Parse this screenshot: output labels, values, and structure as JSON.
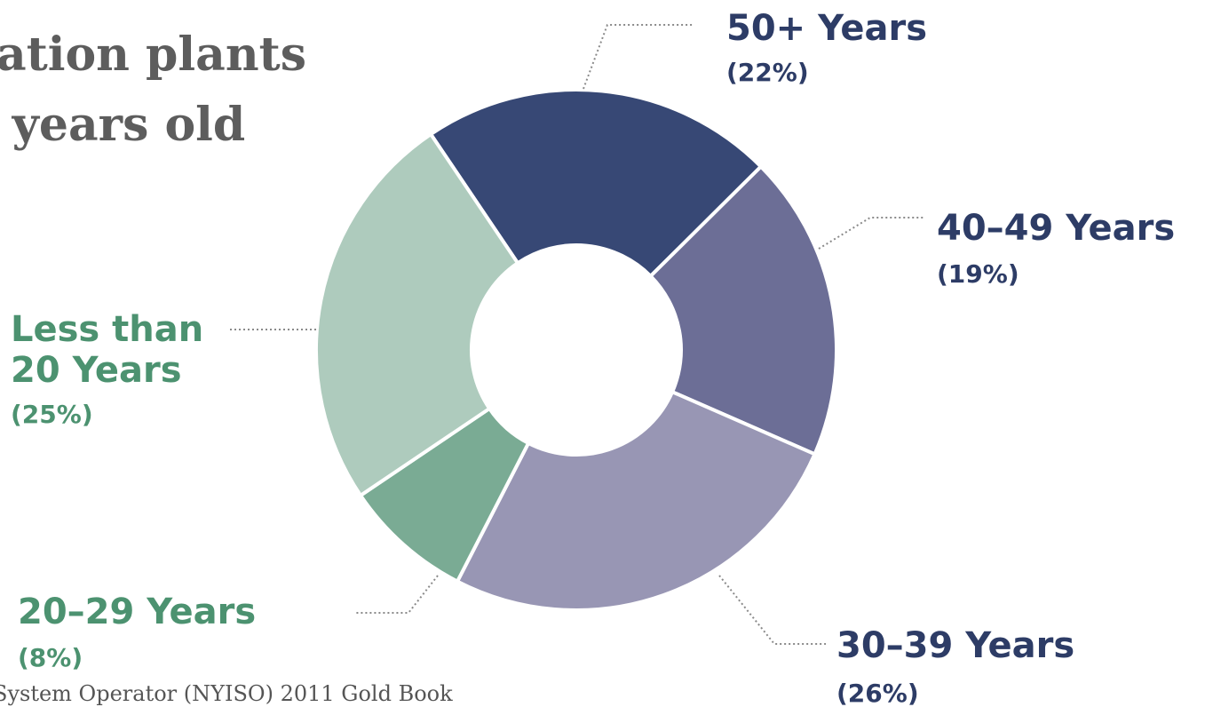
{
  "title": {
    "line1": "ation plants",
    "line2": "- years old"
  },
  "source": "System Operator (NYISO) 2011 Gold Book",
  "chart_data": {
    "type": "pie",
    "donut": true,
    "categories": [
      "50+ Years",
      "40–49 Years",
      "30–39 Years",
      "20–29 Years",
      "Less than 20 Years"
    ],
    "values": [
      22,
      19,
      26,
      8,
      25
    ],
    "labels": [
      {
        "name_lines": [
          "50+ Years"
        ],
        "pct": "(22%)"
      },
      {
        "name_lines": [
          "40–49 Years"
        ],
        "pct": "(19%)"
      },
      {
        "name_lines": [
          "30–39 Years"
        ],
        "pct": "(26%)"
      },
      {
        "name_lines": [
          "20–29 Years"
        ],
        "pct": "(8%)"
      },
      {
        "name_lines": [
          "Less than",
          "20 Years"
        ],
        "pct": "(25%)"
      }
    ],
    "colors": [
      "#374875",
      "#6c6e96",
      "#9896b4",
      "#7aab94",
      "#aecbbd"
    ],
    "label_colors": [
      "#2d3c66",
      "#2d3c66",
      "#2d3c66",
      "#4c9270",
      "#4c9270"
    ]
  }
}
